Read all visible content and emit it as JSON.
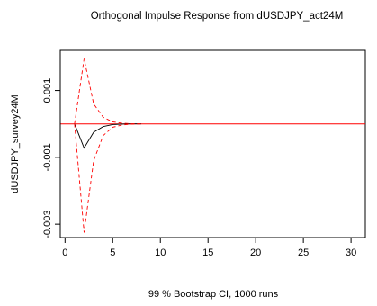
{
  "chart_data": {
    "type": "line",
    "title": "Orthogonal Impulse Response from dUSDJPY_act24M",
    "xlabel": "99 % Bootstrap CI,  1000 runs",
    "ylabel": "dUSDJPY_survey24M",
    "xlim": [
      -0.5,
      31.5
    ],
    "ylim": [
      -0.0034,
      0.0022
    ],
    "x_ticks": [
      0,
      5,
      10,
      15,
      20,
      25,
      30
    ],
    "y_ticks": [
      0.001,
      -0.001,
      -0.003
    ],
    "x_tick_labels": [
      "0",
      "5",
      "10",
      "15",
      "20",
      "25",
      "30"
    ],
    "y_tick_labels": [
      "0.001",
      "-0.001",
      "-0.003"
    ],
    "grid": false,
    "zero_line": 0,
    "colors": {
      "response": "#000000",
      "ci": "#ff0000",
      "zero": "#ff0000"
    },
    "series": [
      {
        "role": "response",
        "x": [
          1,
          2,
          3,
          4,
          5,
          6,
          7,
          8
        ],
        "y": [
          0,
          -0.00072,
          -0.00025,
          -8e-05,
          -2e-05,
          -5e-06,
          0,
          0
        ]
      },
      {
        "role": "ci-upper",
        "x": [
          1,
          2,
          3,
          4,
          5,
          6,
          7,
          8
        ],
        "y": [
          0,
          0.00195,
          0.0006,
          0.0002,
          6e-05,
          2e-05,
          5e-06,
          0
        ]
      },
      {
        "role": "ci-lower",
        "x": [
          1,
          2,
          3,
          4,
          5,
          6,
          7,
          8
        ],
        "y": [
          0,
          -0.00325,
          -0.0011,
          -0.00035,
          -0.0001,
          -3e-05,
          -8e-06,
          0
        ]
      }
    ]
  }
}
